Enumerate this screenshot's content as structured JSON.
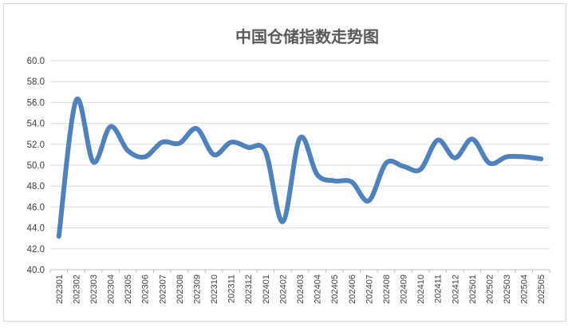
{
  "chart_data": {
    "type": "line",
    "title": "中国仓储指数走势图",
    "xlabel": "",
    "ylabel": "",
    "ylim": [
      40.0,
      60.0
    ],
    "y_ticks": [
      "40.0",
      "42.0",
      "44.0",
      "46.0",
      "48.0",
      "50.0",
      "52.0",
      "54.0",
      "56.0",
      "58.0",
      "60.0"
    ],
    "grid": true,
    "legend": "none",
    "color": "#4f81bd",
    "categories": [
      "202301",
      "202302",
      "202303",
      "202304",
      "202305",
      "202306",
      "202307",
      "202308",
      "202309",
      "202310",
      "202311",
      "202312",
      "202401",
      "202402",
      "202403",
      "202404",
      "202405",
      "202406",
      "202407",
      "202408",
      "202409",
      "202410",
      "202411",
      "202412",
      "202501",
      "202502",
      "202503",
      "202504",
      "202505"
    ],
    "series": [
      {
        "values": [
          43.2,
          56.2,
          50.3,
          53.7,
          51.4,
          50.8,
          52.2,
          52.1,
          53.5,
          51.0,
          52.2,
          51.7,
          51.3,
          44.6,
          52.6,
          49.1,
          48.5,
          48.4,
          46.6,
          50.2,
          49.9,
          49.6,
          52.4,
          50.7,
          52.5,
          50.2,
          50.8,
          50.8,
          50.6
        ]
      }
    ]
  }
}
